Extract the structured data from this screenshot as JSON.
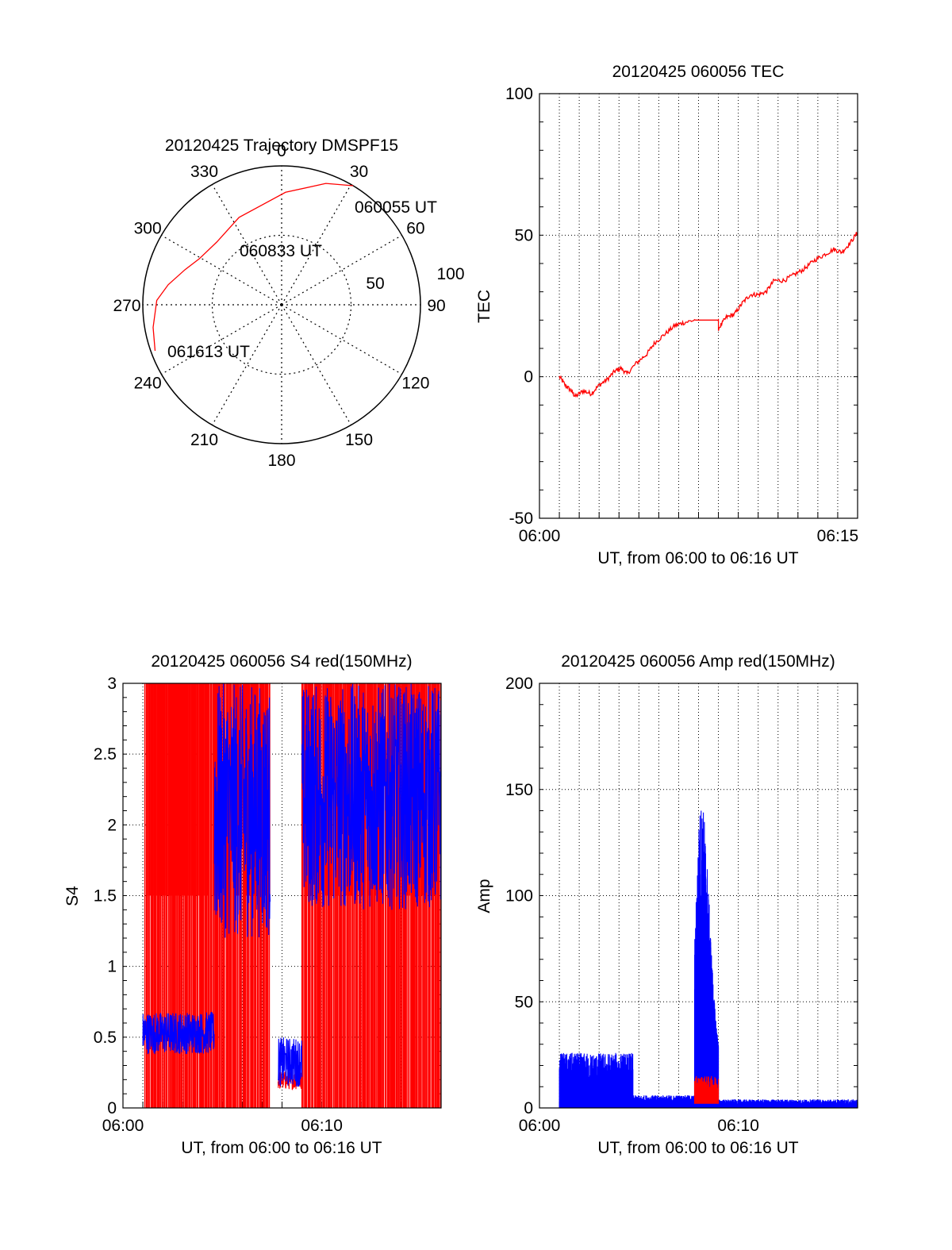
{
  "colors": {
    "red": "#ff0000",
    "blue": "#0000ff",
    "axis": "#000000",
    "grid": "#000000",
    "background": "#ffffff"
  },
  "chart_data": [
    {
      "type": "polar",
      "title": "20120425 Trajectory DMSPF15",
      "angle_labels": [
        "0",
        "30",
        "60",
        "90",
        "120",
        "150",
        "180",
        "210",
        "240",
        "270",
        "300",
        "330"
      ],
      "radius_labels": [
        "50",
        "100"
      ],
      "series": [
        {
          "color": "red",
          "points": [
            {
              "az": 31,
              "r": 100
            },
            {
              "az": 20,
              "r": 93
            },
            {
              "az": 2,
              "r": 81
            },
            {
              "az": -26,
              "r": 70
            },
            {
              "az": -46,
              "r": 65
            },
            {
              "az": -61,
              "r": 68
            },
            {
              "az": -70,
              "r": 74
            },
            {
              "az": -80,
              "r": 83
            },
            {
              "az": -88,
              "r": 90
            },
            {
              "az": -100,
              "r": 94
            },
            {
              "az": -110,
              "r": 97
            }
          ]
        }
      ],
      "annotations": [
        {
          "text": "060055 UT",
          "az": 33,
          "r": 100
        },
        {
          "text": "060833 UT",
          "az": -34,
          "r": 66
        },
        {
          "text": "061613 UT",
          "az": -108,
          "r": 96
        }
      ]
    },
    {
      "type": "line",
      "title": "20120425 060056 TEC",
      "xlabel": "UT, from 06:00 to 06:16 UT",
      "ylabel": "TEC",
      "xlim": [
        0,
        16
      ],
      "ylim": [
        -50,
        100
      ],
      "x_ticks": [
        {
          "value": 0,
          "label": "06:00"
        },
        {
          "value": 15,
          "label": "06:15"
        }
      ],
      "y_ticks": [
        -50,
        0,
        50,
        100
      ],
      "grid": true,
      "series": [
        {
          "color": "red",
          "x": [
            1.0,
            1.3,
            1.6,
            1.8,
            2.2,
            2.6,
            3.0,
            3.4,
            3.8,
            4.1,
            4.4,
            4.9,
            5.4,
            5.8,
            6.3,
            6.8,
            7.2,
            7.8,
            8.4,
            9.0,
            9.0,
            9.4,
            9.8,
            10.2,
            10.6,
            11.0,
            11.4,
            11.8,
            12.3,
            12.8,
            13.3,
            13.8,
            14.3,
            14.8,
            15.2,
            15.6,
            16.0
          ],
          "y": [
            0,
            -3,
            -5,
            -7,
            -5,
            -6,
            -3,
            -1,
            2,
            3,
            1,
            5,
            8,
            12,
            15,
            18,
            19,
            20,
            20,
            20,
            17,
            21,
            22,
            26,
            29,
            29,
            30,
            34,
            34,
            36,
            38,
            41,
            43,
            45,
            44,
            47,
            51
          ]
        }
      ]
    },
    {
      "type": "line",
      "title": "20120425 060056 S4 red(150MHz)",
      "xlabel": "UT, from 06:00 to 06:16 UT",
      "ylabel": "S4",
      "xlim": [
        0,
        16
      ],
      "ylim": [
        0,
        3
      ],
      "x_ticks": [
        {
          "value": 0,
          "label": "06:00"
        },
        {
          "value": 10,
          "label": "06:10"
        }
      ],
      "y_ticks": [
        "0",
        "0.5",
        "1",
        "1.5",
        "2",
        "2.5",
        "3"
      ],
      "grid": true,
      "series": [
        {
          "color": "red",
          "segments": [
            {
              "x": [
                1.1,
                4.6
              ],
              "kind": "dense",
              "ymin": 0,
              "ymax": 3,
              "baseline": 1.5
            },
            {
              "x": [
                4.6,
                7.4
              ],
              "kind": "dense",
              "ymin": 0,
              "ymax": 3,
              "baseline": 1.5
            },
            {
              "x": [
                7.8,
                9.0
              ],
              "kind": "trace",
              "ymin": 0.13,
              "ymax": 0.26
            },
            {
              "x": [
                9.0,
                16.0
              ],
              "kind": "dense",
              "ymin": 0,
              "ymax": 3,
              "baseline": 1.5
            }
          ]
        },
        {
          "color": "blue",
          "segments": [
            {
              "x": [
                1.0,
                4.6
              ],
              "kind": "trace",
              "ymin": 0.38,
              "ymax": 0.68
            },
            {
              "x": [
                4.6,
                7.4
              ],
              "kind": "trace",
              "ymin": 1.2,
              "ymax": 3.0
            },
            {
              "x": [
                7.8,
                9.0
              ],
              "kind": "trace",
              "ymin": 0.15,
              "ymax": 0.5
            },
            {
              "x": [
                9.0,
                16.0
              ],
              "kind": "trace",
              "ymin": 1.4,
              "ymax": 3.0
            }
          ]
        }
      ]
    },
    {
      "type": "line",
      "title": "20120425 060056 Amp red(150MHz)",
      "xlabel": "UT, from 06:00 to 06:16 UT",
      "ylabel": "Amp",
      "xlim": [
        0,
        16
      ],
      "ylim": [
        0,
        200
      ],
      "x_ticks": [
        {
          "value": 0,
          "label": "06:00"
        },
        {
          "value": 10,
          "label": "06:10"
        }
      ],
      "y_ticks": [
        0,
        50,
        100,
        150,
        200
      ],
      "grid": true,
      "series": [
        {
          "color": "red",
          "segments": [
            {
              "x": [
                7.8,
                9.0
              ],
              "kind": "noise",
              "ymin": 2,
              "ymax": 15
            }
          ]
        },
        {
          "color": "blue",
          "segments": [
            {
              "x": [
                1.0,
                4.7
              ],
              "kind": "noise",
              "ymin": 0,
              "ymax": 26
            },
            {
              "x": [
                4.7,
                7.8
              ],
              "kind": "noise",
              "ymin": 0,
              "ymax": 6
            },
            {
              "x": [
                7.8,
                9.0
              ],
              "kind": "spike",
              "ymin": 0,
              "ymax": 145
            },
            {
              "x": [
                9.0,
                16.0
              ],
              "kind": "noise",
              "ymin": 0,
              "ymax": 4
            }
          ]
        }
      ]
    }
  ]
}
